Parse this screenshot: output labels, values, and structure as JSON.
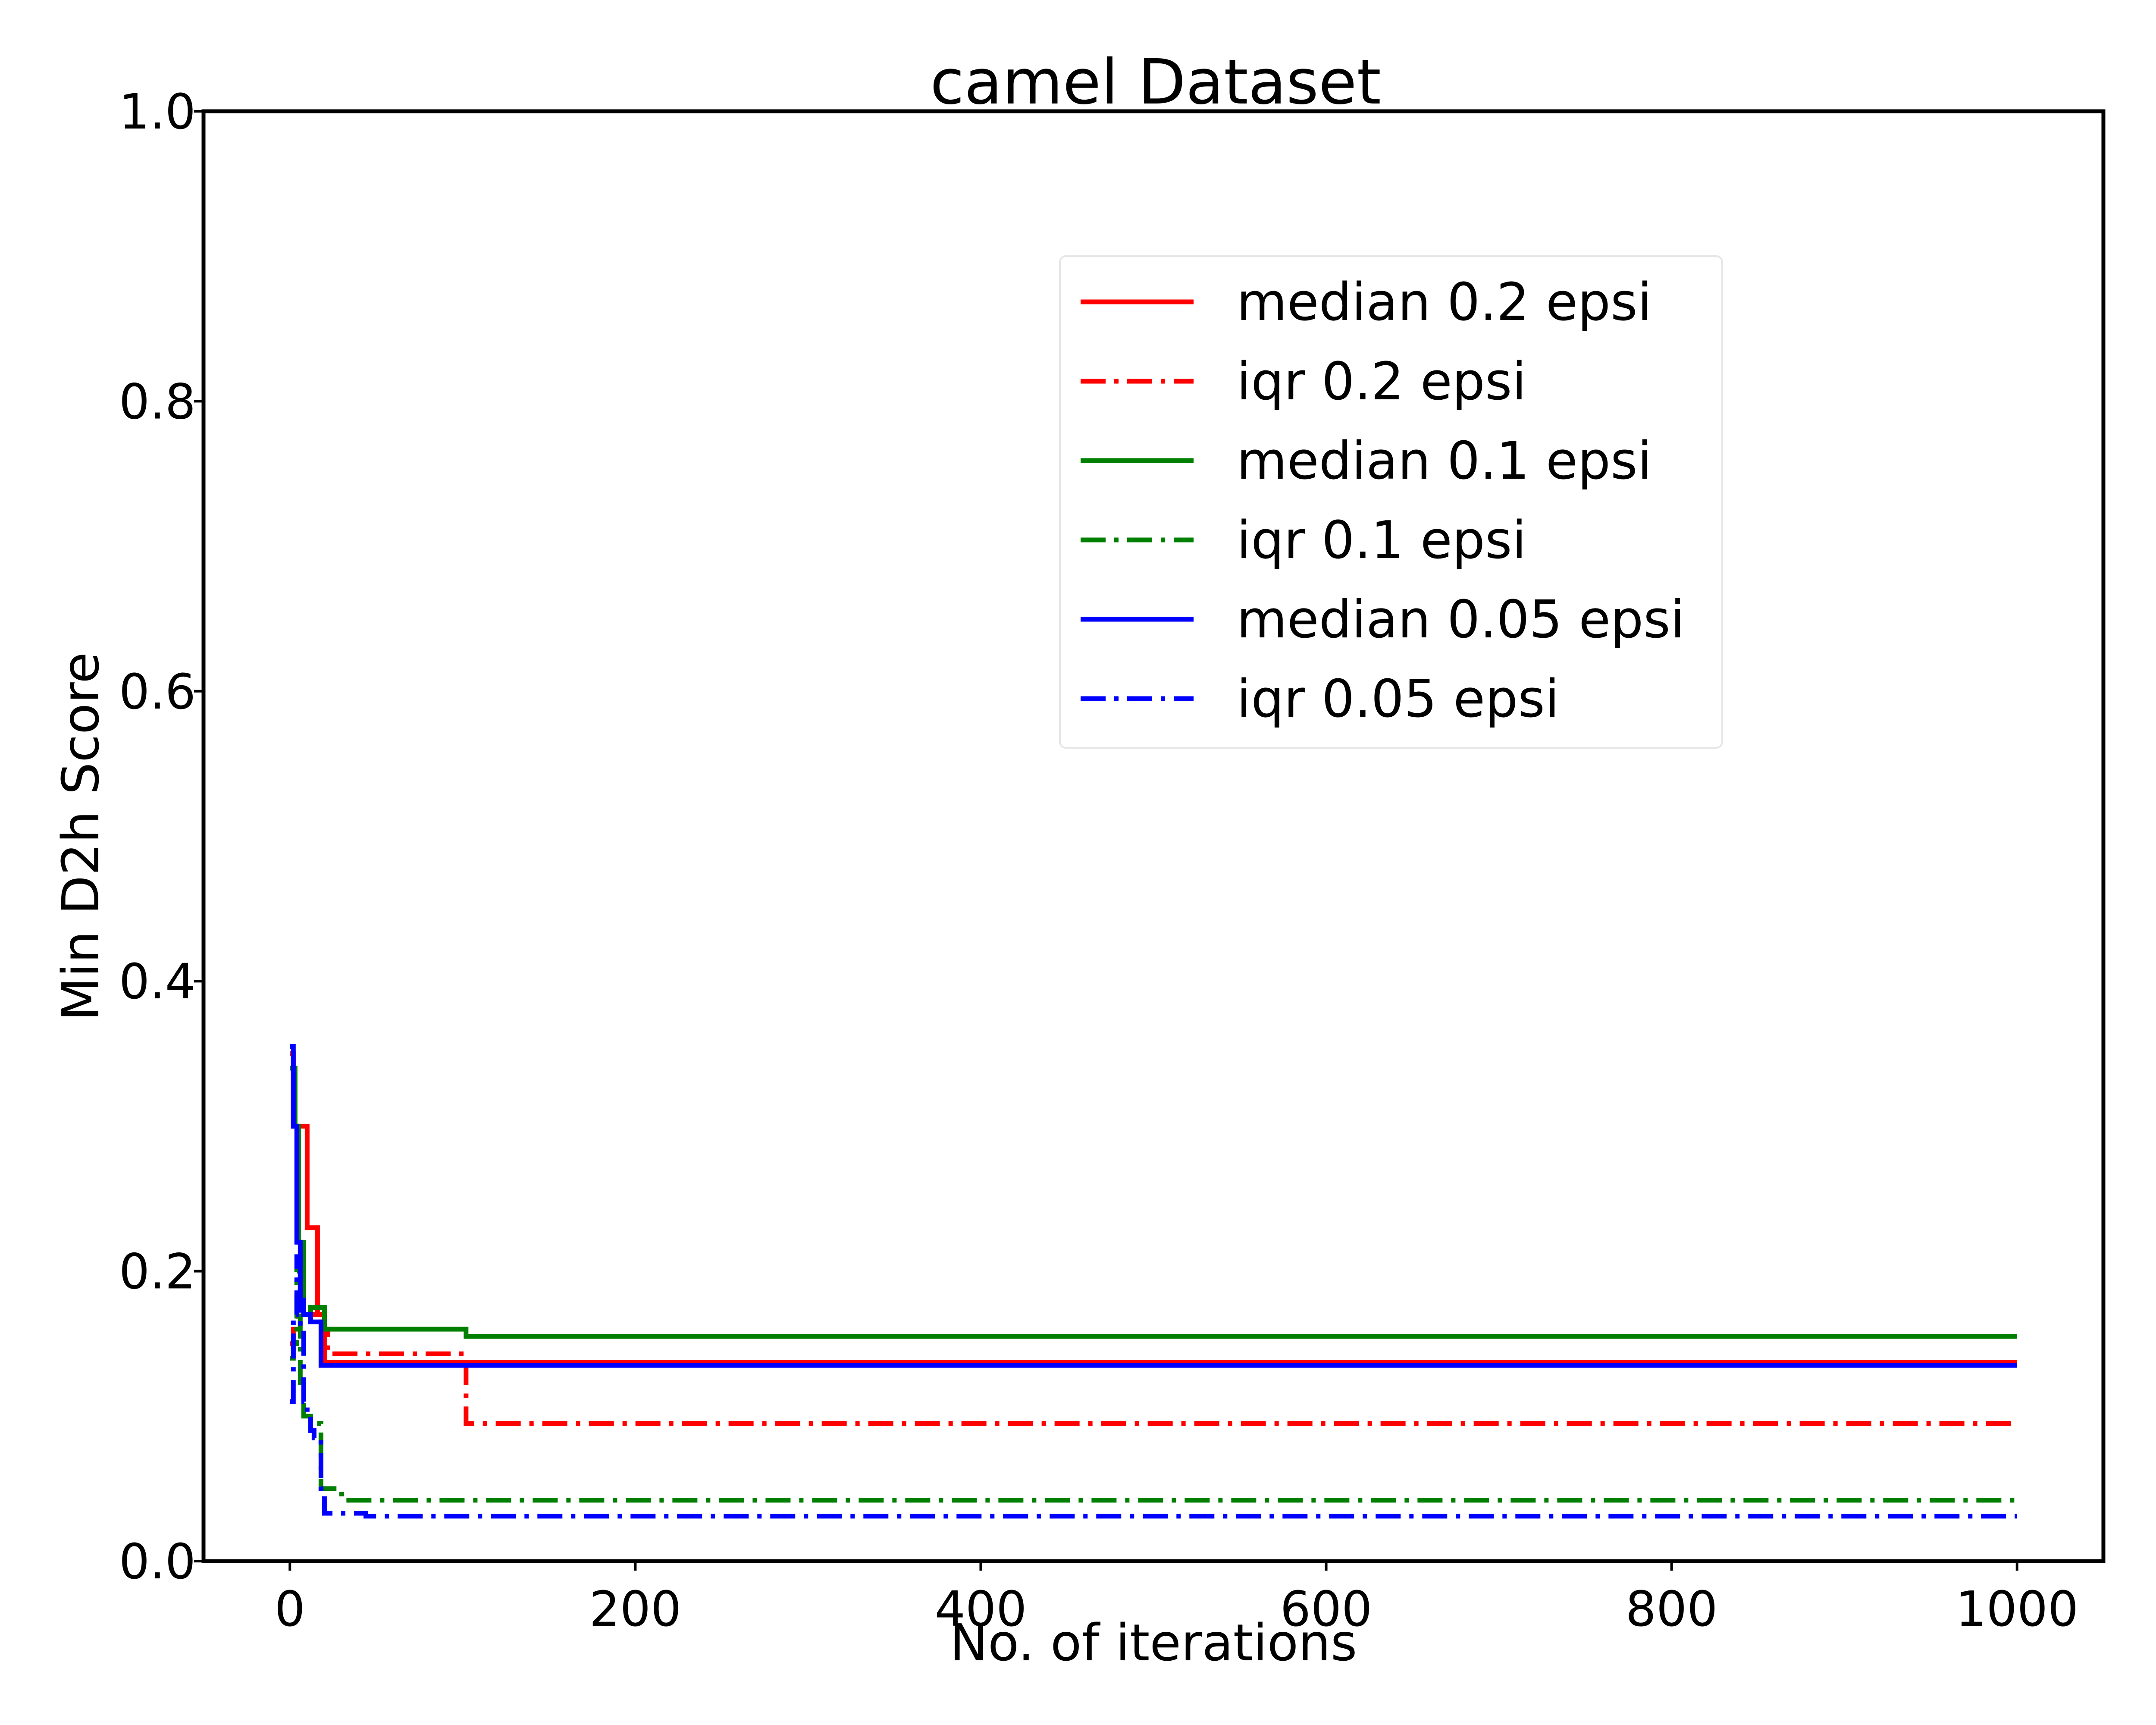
{
  "chart_data": {
    "type": "line",
    "title": "camel Dataset",
    "xlabel": "No. of iterations",
    "ylabel": "Min D2h Score",
    "xlim": [
      -50,
      1050
    ],
    "ylim": [
      0,
      1
    ],
    "xticks": [
      0,
      200,
      400,
      600,
      800,
      1000
    ],
    "xtick_labels": [
      "0",
      "200",
      "400",
      "600",
      "800",
      "1000"
    ],
    "yticks": [
      0,
      0.2,
      0.4,
      0.6,
      0.8,
      1.0
    ],
    "ytick_labels": [
      "0.0",
      "0.2",
      "0.4",
      "0.6",
      "0.8",
      "1.0"
    ],
    "grid": false,
    "legend_position": "upper-right",
    "series": [
      {
        "name": "median 0.2 epsi",
        "color": "#ff0000",
        "style": "solid",
        "x": [
          0,
          2,
          4,
          6,
          8,
          10,
          12,
          14,
          16,
          18,
          20,
          1000
        ],
        "y": [
          0.35,
          0.3,
          0.3,
          0.3,
          0.3,
          0.23,
          0.23,
          0.23,
          0.17,
          0.17,
          0.137,
          0.137
        ]
      },
      {
        "name": "iqr 0.2 epsi",
        "color": "#ff0000",
        "style": "dashdot",
        "x": [
          0,
          2,
          5,
          8,
          12,
          16,
          20,
          22,
          100,
          102,
          1000
        ],
        "y": [
          0.15,
          0.16,
          0.18,
          0.17,
          0.17,
          0.165,
          0.16,
          0.143,
          0.143,
          0.095,
          0.095
        ]
      },
      {
        "name": "median 0.1 epsi",
        "color": "#007f00",
        "style": "solid",
        "x": [
          0,
          3,
          5,
          8,
          12,
          18,
          20,
          100,
          102,
          1000
        ],
        "y": [
          0.34,
          0.3,
          0.22,
          0.17,
          0.175,
          0.175,
          0.16,
          0.16,
          0.155,
          0.155
        ]
      },
      {
        "name": "iqr 0.1 epsi",
        "color": "#007f00",
        "style": "dashdot",
        "x": [
          0,
          2,
          4,
          6,
          8,
          12,
          16,
          18,
          20,
          26,
          30,
          1000
        ],
        "y": [
          0.14,
          0.15,
          0.2,
          0.12,
          0.1,
          0.095,
          0.095,
          0.05,
          0.05,
          0.05,
          0.042,
          0.042
        ]
      },
      {
        "name": "median 0.05 epsi",
        "color": "#0000ff",
        "style": "solid",
        "x": [
          0,
          2,
          4,
          6,
          8,
          12,
          16,
          18,
          1000
        ],
        "y": [
          0.355,
          0.3,
          0.22,
          0.18,
          0.17,
          0.165,
          0.165,
          0.135,
          0.135
        ]
      },
      {
        "name": "iqr 0.05 epsi",
        "color": "#0000ff",
        "style": "dashdot",
        "x": [
          0,
          2,
          4,
          6,
          8,
          10,
          12,
          14,
          16,
          18,
          20,
          40,
          44,
          1000
        ],
        "y": [
          0.11,
          0.17,
          0.21,
          0.16,
          0.11,
          0.1,
          0.09,
          0.085,
          0.085,
          0.05,
          0.033,
          0.033,
          0.031,
          0.031
        ]
      }
    ]
  }
}
